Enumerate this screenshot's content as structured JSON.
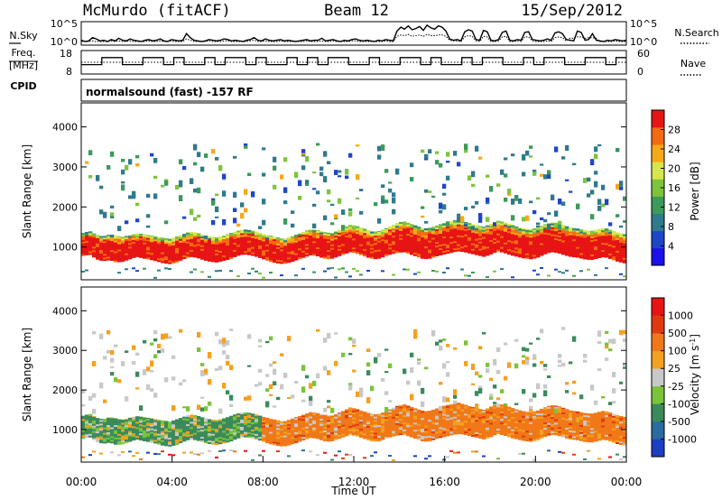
{
  "header": {
    "station": "McMurdo (fitACF)",
    "beam": "Beam 12",
    "date": "15/Sep/2012"
  },
  "left_labels": {
    "nsky": "N.Sky",
    "freq": "Freq.",
    "freq_unit": "[MHz]",
    "cpid": "CPID"
  },
  "right_labels": {
    "nsearch": "N.Search",
    "nave": "Nave"
  },
  "cpid_text": "normalsound (fast) -157 RF",
  "chart_data": [
    {
      "type": "line",
      "name": "noise",
      "series": [
        {
          "name": "N.Sky",
          "values": [
            1.2,
            1.0,
            1.1,
            1.6,
            1.4,
            1.1,
            1.2,
            1.0,
            1.3,
            1.1,
            1.5,
            1.2,
            1.1,
            1.4,
            1.2,
            1.1,
            1.0,
            1.2,
            1.3,
            1.1,
            1.2,
            1.4,
            1.1,
            1.0,
            1.3,
            1.2,
            1.1,
            1.2,
            2.2,
            1.6,
            1.2,
            1.1,
            1.0,
            1.1,
            1.3,
            1.2,
            1.1,
            1.2,
            1.4,
            1.3,
            1.1,
            1.2,
            1.1,
            1.0,
            1.2,
            1.3,
            1.6,
            1.2,
            1.1,
            1.4,
            1.2,
            1.1,
            1.2,
            1.3,
            1.1,
            1.2,
            1.1,
            1.0,
            1.1,
            1.2,
            1.3,
            1.1,
            1.2,
            1.2,
            1.5,
            1.1,
            1.2,
            1.3,
            1.1,
            1.0,
            1.2,
            1.1,
            1.3,
            1.4,
            1.2,
            1.1,
            1.2,
            1.1,
            1.0,
            1.2,
            1.1,
            1.3,
            1.2,
            1.1,
            2.6,
            3.2,
            2.9,
            3.4,
            2.8,
            3.0,
            3.3,
            2.7,
            3.5,
            3.1,
            2.9,
            3.4,
            3.2,
            2.6,
            1.4,
            1.2,
            1.3,
            1.1,
            2.5,
            2.8,
            2.6,
            1.3,
            1.2,
            2.7,
            2.5,
            1.2,
            1.1,
            1.3,
            2.4,
            2.6,
            1.2,
            1.1,
            1.3,
            1.2,
            2.4,
            2.5,
            1.3,
            1.2,
            1.1,
            1.2,
            1.4,
            1.2,
            2.3,
            2.5,
            2.2,
            1.3,
            1.2,
            1.1,
            2.6,
            2.4,
            1.2,
            1.3,
            2.2,
            1.2,
            1.1,
            1.0,
            1.2,
            1.1,
            1.3,
            1.2,
            1.1,
            1.2
          ]
        },
        {
          "name": "N.Search",
          "values": [
            1.0,
            1.0,
            1.0,
            1.1,
            1.0,
            1.0,
            1.0,
            1.0,
            1.1,
            1.0,
            1.1,
            1.0,
            1.0,
            1.1,
            1.0,
            1.0,
            1.0,
            1.0,
            1.1,
            1.0,
            1.0,
            1.1,
            1.0,
            1.0,
            1.1,
            1.0,
            1.0,
            1.0,
            1.4,
            1.2,
            1.0,
            1.0,
            1.0,
            1.0,
            1.1,
            1.0,
            1.0,
            1.0,
            1.1,
            1.1,
            1.0,
            1.0,
            1.0,
            1.0,
            1.0,
            1.1,
            1.2,
            1.0,
            1.0,
            1.1,
            1.0,
            1.0,
            1.0,
            1.1,
            1.0,
            1.0,
            1.0,
            1.0,
            1.0,
            1.0,
            1.1,
            1.0,
            1.0,
            1.0,
            1.1,
            1.0,
            1.0,
            1.1,
            1.0,
            1.0,
            1.0,
            1.0,
            1.1,
            1.1,
            1.0,
            1.0,
            1.0,
            1.0,
            1.0,
            1.0,
            1.0,
            1.1,
            1.0,
            1.0,
            1.8,
            2.0,
            1.9,
            2.1,
            1.8,
            1.9,
            2.0,
            1.8,
            2.1,
            1.9,
            1.9,
            2.0,
            2.0,
            1.8,
            1.2,
            1.1,
            1.1,
            1.0,
            1.7,
            1.9,
            1.8,
            1.1,
            1.0,
            1.8,
            1.7,
            1.0,
            1.0,
            1.1,
            1.7,
            1.8,
            1.0,
            1.0,
            1.1,
            1.0,
            1.7,
            1.7,
            1.1,
            1.0,
            1.0,
            1.0,
            1.1,
            1.0,
            1.6,
            1.7,
            1.6,
            1.1,
            1.5,
            1.5,
            1.7,
            1.7,
            1.5,
            1.6,
            1.6,
            1.5,
            1.0,
            1.0,
            1.0,
            1.0,
            1.1,
            1.0,
            1.0,
            1.0
          ]
        }
      ],
      "ylabels": [
        "10^5",
        "10^0"
      ]
    },
    {
      "type": "line",
      "name": "frequency_nave",
      "series": [
        {
          "name": "Freq.",
          "values": [
            12,
            12,
            15,
            15,
            12,
            12,
            15,
            15,
            12,
            15,
            12,
            12,
            15,
            12,
            15,
            15,
            12,
            15,
            12,
            12,
            15,
            12,
            15,
            12,
            15,
            15,
            12,
            12,
            15,
            12,
            12,
            15,
            15,
            12,
            15,
            12,
            12,
            15,
            12,
            15,
            15,
            12,
            12,
            15,
            12,
            15,
            15,
            12,
            12,
            15,
            15,
            12,
            15
          ]
        },
        {
          "name": "Nave",
          "values": [
            30,
            30,
            30,
            30,
            30,
            30,
            30,
            30,
            30,
            30,
            30,
            30,
            30,
            30,
            30,
            30,
            30,
            30,
            30,
            30,
            30,
            30,
            30,
            30,
            30,
            30,
            30,
            30,
            30,
            30,
            30,
            30,
            30,
            30,
            30,
            30,
            30,
            30,
            30,
            30,
            30,
            30,
            30,
            30,
            30,
            30,
            30,
            30,
            30,
            30,
            30,
            30,
            30
          ]
        }
      ],
      "freq_ticks": [
        "18",
        "8"
      ],
      "nave_ticks": [
        "60",
        "0"
      ]
    },
    {
      "type": "heatmap",
      "name": "Power",
      "ylabel": "Slant Range [km]",
      "ylim": [
        180,
        4600
      ],
      "yticks": [
        "4000",
        "3000",
        "2000",
        "1000"
      ],
      "colorbar_label": "Power [dB]",
      "colorbar_ticks": [
        "28",
        "24",
        "20",
        "16",
        "12",
        "8",
        "4"
      ],
      "colors": [
        "#1a10e8",
        "#1e46c8",
        "#2f7a8c",
        "#3c9a5a",
        "#7dc43c",
        "#d7e64c",
        "#f7a818",
        "#f56a10",
        "#e61414"
      ],
      "band_lower_km": [
        780,
        820,
        700,
        650,
        680,
        620,
        640,
        700,
        760,
        720,
        690,
        650,
        600,
        580,
        620,
        700,
        760,
        740,
        680,
        640,
        620,
        660,
        700,
        780,
        820,
        800,
        760,
        700,
        640,
        600,
        580,
        620,
        680,
        740,
        800,
        780,
        720,
        700,
        760,
        820,
        880,
        840,
        780,
        720,
        700,
        760,
        820,
        860,
        880,
        820,
        760,
        700,
        720,
        780,
        820,
        860,
        900,
        880,
        840,
        800,
        760,
        820,
        900,
        860,
        800,
        760,
        720,
        700,
        740,
        820,
        880,
        860,
        800,
        760,
        740,
        700,
        680,
        720,
        760,
        700,
        640,
        600
      ],
      "band_upper_km": [
        1350,
        1400,
        1300,
        1260,
        1320,
        1280,
        1250,
        1300,
        1340,
        1320,
        1290,
        1260,
        1230,
        1200,
        1260,
        1320,
        1380,
        1360,
        1300,
        1260,
        1240,
        1280,
        1340,
        1400,
        1440,
        1420,
        1380,
        1320,
        1280,
        1240,
        1200,
        1260,
        1320,
        1380,
        1440,
        1420,
        1380,
        1340,
        1400,
        1480,
        1560,
        1520,
        1460,
        1400,
        1380,
        1440,
        1520,
        1600,
        1640,
        1580,
        1520,
        1460,
        1480,
        1540,
        1600,
        1640,
        1680,
        1640,
        1580,
        1540,
        1500,
        1580,
        1660,
        1620,
        1560,
        1500,
        1460,
        1440,
        1480,
        1560,
        1620,
        1600,
        1540,
        1480,
        1460,
        1420,
        1400,
        1440,
        1480,
        1420,
        1360,
        1320
      ]
    },
    {
      "type": "heatmap",
      "name": "Velocity",
      "ylabel": "Slant Range [km]",
      "xlabel": "Time UT",
      "ylim": [
        180,
        4600
      ],
      "yticks": [
        "4000",
        "3000",
        "2000",
        "1000"
      ],
      "xticks": [
        "00:00",
        "04:00",
        "08:00",
        "12:00",
        "16:00",
        "20:00",
        "00:00"
      ],
      "colorbar_label": "Velocity [m s^-1]",
      "colorbar_ticks": [
        "1000",
        "500",
        "100",
        "25",
        "-25",
        "-100",
        "-500",
        "-1000"
      ],
      "colors": [
        "#1b3fc0",
        "#2a6ba0",
        "#3b8a5c",
        "#7ac43a",
        "#c8c8c8",
        "#f4a020",
        "#f07818",
        "#e23a10",
        "#e61414"
      ]
    }
  ]
}
